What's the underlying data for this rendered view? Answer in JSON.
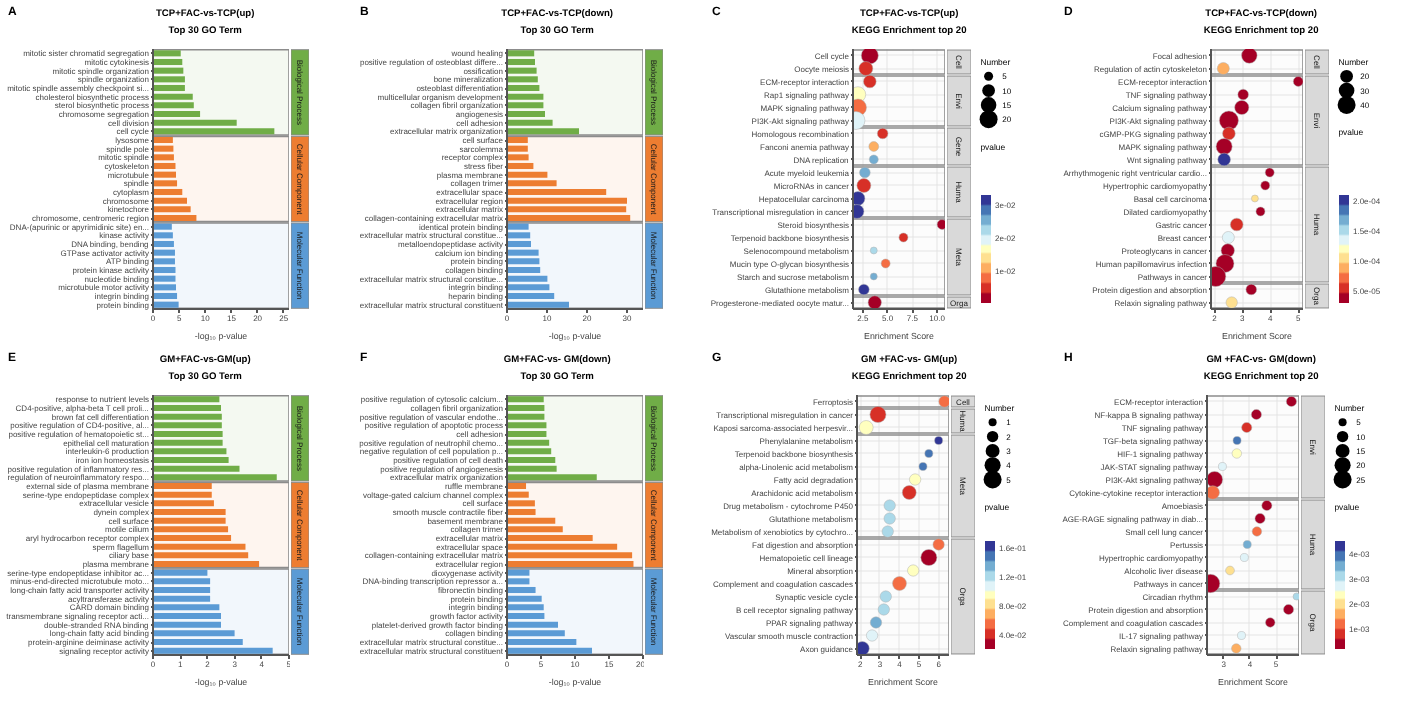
{
  "chart_data": [
    {
      "type": "bar",
      "orientation": "horizontal",
      "title": "TCP+FAC-vs-TCP(up)",
      "subtitle": "Top 30 GO Term",
      "xlabel": "-log₁₀ p-value",
      "annotations": [
        "A"
      ],
      "bands": [
        {
          "axis": "y",
          "from": "mitotic sister chromatid segregation",
          "to": "cell cycle",
          "label": "Biological Process",
          "color": "#70ad47"
        },
        {
          "axis": "y",
          "from": "lysosome",
          "to": "chromosome, centromeric region",
          "label": "Cellular Component",
          "color": "#ed7d31"
        },
        {
          "axis": "y",
          "from": "DNA-(apurinic or apyrimidinic site) en...",
          "to": "protein binding",
          "label": "Molecular Function",
          "color": "#5b9bd5"
        }
      ],
      "categories": [
        "mitotic sister chromatid segregation",
        "mitotic cytokinesis",
        "mitotic spindle organization",
        "spindle organization",
        "mitotic spindle assembly checkpoint si...",
        "cholesterol biosynthetic process",
        "sterol biosynthetic process",
        "chromosome segregation",
        "cell division",
        "cell cycle",
        "lysosome",
        "spindle pole",
        "mitotic spindle",
        "cytoskeleton",
        "microtubule",
        "spindle",
        "cytoplasm",
        "chromosome",
        "kinetochore",
        "chromosome, centromeric region",
        "DNA-(apurinic or apyrimidinic site) en...",
        "kinase activity",
        "DNA binding, bending",
        "GTPase activator activity",
        "ATP binding",
        "protein kinase activity",
        "nucleotide binding",
        "microtubule motor activity",
        "integrin binding",
        "protein binding"
      ],
      "values": [
        5.3,
        5.6,
        5.8,
        6.1,
        6.1,
        7.6,
        7.8,
        9.0,
        16.0,
        23.2,
        3.8,
        3.9,
        4.0,
        4.3,
        4.4,
        4.6,
        5.6,
        6.5,
        7.2,
        8.3,
        3.6,
        3.8,
        4.0,
        4.2,
        4.2,
        4.3,
        4.3,
        4.4,
        4.6,
        4.9
      ],
      "colors": [
        "#70ad47",
        "#70ad47",
        "#70ad47",
        "#70ad47",
        "#70ad47",
        "#70ad47",
        "#70ad47",
        "#70ad47",
        "#70ad47",
        "#70ad47",
        "#ed7d31",
        "#ed7d31",
        "#ed7d31",
        "#ed7d31",
        "#ed7d31",
        "#ed7d31",
        "#ed7d31",
        "#ed7d31",
        "#ed7d31",
        "#ed7d31",
        "#5b9bd5",
        "#5b9bd5",
        "#5b9bd5",
        "#5b9bd5",
        "#5b9bd5",
        "#5b9bd5",
        "#5b9bd5",
        "#5b9bd5",
        "#5b9bd5",
        "#5b9bd5"
      ],
      "xlim": [
        0,
        26
      ],
      "xticks": [
        0,
        5,
        10,
        15,
        20,
        25
      ]
    },
    {
      "type": "bar",
      "orientation": "horizontal",
      "title": "TCP+FAC-vs-TCP(down)",
      "subtitle": "Top 30 GO Term",
      "xlabel": "-log₁₀ p-value",
      "annotations": [
        "B"
      ],
      "bands": [
        {
          "axis": "y",
          "from": "wound healing",
          "to": "extracellular matrix organization",
          "label": "Biological Process",
          "color": "#70ad47"
        },
        {
          "axis": "y",
          "from": "cell surface",
          "to": "collagen-containing extracellular matrix",
          "label": "Cellular Component",
          "color": "#ed7d31"
        },
        {
          "axis": "y",
          "from": "identical protein binding",
          "to": "extracellular matrix structural constituent",
          "label": "Molecular Function",
          "color": "#5b9bd5"
        }
      ],
      "categories": [
        "wound healing",
        "positive regulation of osteoblast differe...",
        "ossification",
        "bone mineralization",
        "osteoblast differentiation",
        "multicellular organism development",
        "collagen fibril organization",
        "angiogenesis",
        "cell adhesion",
        "extracellular matrix organization",
        "cell surface",
        "sarcolemma",
        "receptor complex",
        "stress fiber",
        "plasma membrane",
        "collagen trimer",
        "extracellular space",
        "extracellular region",
        "extracellular matrix",
        "collagen-containing extracellular matrix",
        "identical protein binding",
        "extracellular matrix structural constitue...",
        "metalloendopeptidase activity",
        "calcium ion binding",
        "protein binding",
        "collagen binding",
        "extracellular matrix structural constitue...",
        "integrin binding",
        "heparin binding",
        "extracellular matrix structural constituent"
      ],
      "values": [
        6.8,
        7.0,
        7.4,
        7.7,
        8.1,
        9.1,
        9.1,
        9.5,
        11.4,
        18.0,
        5.2,
        5.2,
        5.4,
        6.6,
        10.1,
        12.4,
        24.8,
        30.0,
        29.8,
        30.8,
        5.4,
        5.8,
        6.0,
        7.9,
        8.1,
        8.3,
        10.1,
        10.6,
        11.8,
        15.5
      ],
      "colors": [
        "#70ad47",
        "#70ad47",
        "#70ad47",
        "#70ad47",
        "#70ad47",
        "#70ad47",
        "#70ad47",
        "#70ad47",
        "#70ad47",
        "#70ad47",
        "#ed7d31",
        "#ed7d31",
        "#ed7d31",
        "#ed7d31",
        "#ed7d31",
        "#ed7d31",
        "#ed7d31",
        "#ed7d31",
        "#ed7d31",
        "#ed7d31",
        "#5b9bd5",
        "#5b9bd5",
        "#5b9bd5",
        "#5b9bd5",
        "#5b9bd5",
        "#5b9bd5",
        "#5b9bd5",
        "#5b9bd5",
        "#5b9bd5",
        "#5b9bd5"
      ],
      "xlim": [
        0,
        34
      ],
      "xticks": [
        0,
        10,
        20,
        30
      ]
    },
    {
      "type": "bubble",
      "orientation": "horizontal",
      "title": "TCP+FAC-vs-TCP(up)",
      "subtitle": "KEGG Enrichment top 20",
      "xlabel": "Enrichment Score",
      "grid": true,
      "annotations": [
        "C"
      ],
      "bands": [
        {
          "axis": "y",
          "from": "Cell cycle",
          "to": "Oocyte meiosis",
          "label": "Cell",
          "color": "#d9d9d9"
        },
        {
          "axis": "y",
          "from": "ECM-receptor interaction",
          "to": "PI3K-Akt signaling pathway",
          "label": "Envi",
          "color": "#d9d9d9"
        },
        {
          "axis": "y",
          "from": "Homologous recombination",
          "to": "DNA replication",
          "label": "Gene",
          "color": "#d9d9d9"
        },
        {
          "axis": "y",
          "from": "Acute myeloid leukemia",
          "to": "Transcriptional misregulation in cancer",
          "label": "Huma",
          "color": "#d9d9d9"
        },
        {
          "axis": "y",
          "from": "Steroid biosynthesis",
          "to": "Glutathione metabolism",
          "label": "Meta",
          "color": "#d9d9d9"
        },
        {
          "axis": "y",
          "from": "Progesterone-mediated oocyte matur...",
          "to": "Progesterone-mediated oocyte matur...",
          "label": "Orga",
          "color": "#d9d9d9"
        }
      ],
      "categories": [
        "Cell cycle",
        "Oocyte meiosis",
        "ECM-receptor interaction",
        "Rap1 signaling pathway",
        "MAPK signaling pathway",
        "PI3K-Akt signaling pathway",
        "Homologous recombination",
        "Fanconi anemia pathway",
        "DNA replication",
        "Acute myeloid leukemia",
        "MicroRNAs in cancer",
        "Hepatocellular carcinoma",
        "Transcriptional misregulation in cancer",
        "Steroid biosynthesis",
        "Terpenoid backbone biosynthesis",
        "Selenocompound metabolism",
        "Mucin type O-glycan biosynthesis",
        "Starch and sucrose metabolism",
        "Glutathione metabolism",
        "Progesterone-mediated oocyte matur..."
      ],
      "values": [
        3.2,
        2.8,
        3.2,
        2.0,
        2.0,
        1.8,
        4.5,
        3.6,
        3.6,
        2.7,
        2.6,
        2.0,
        1.9,
        10.5,
        6.6,
        3.6,
        4.8,
        3.6,
        2.6,
        3.7
      ],
      "sizes": [
        18,
        12,
        10,
        15,
        18,
        20,
        7,
        6,
        5,
        7,
        12,
        12,
        12,
        6,
        5,
        3,
        5,
        3,
        7,
        11
      ],
      "cvalues": [
        0.001,
        0.004,
        0.004,
        0.018,
        0.008,
        0.019,
        0.005,
        0.012,
        0.026,
        0.026,
        0.006,
        0.031,
        0.031,
        0.001,
        0.004,
        0.022,
        0.009,
        0.026,
        0.032,
        0.003
      ],
      "size_legend": [
        5,
        10,
        15,
        20
      ],
      "legend_title": "Number",
      "clabel": "pvalue",
      "clim": [
        0.0005,
        0.033
      ],
      "cticks": [
        {
          "value": 0.01,
          "label": "1e-02"
        },
        {
          "value": 0.02,
          "label": "2e-02"
        },
        {
          "value": 0.03,
          "label": "3e-02"
        }
      ],
      "xlim": [
        1.5,
        10.8
      ],
      "xticks": [
        2.5,
        {
          "value": 5,
          "label": "5.0"
        },
        7.5,
        {
          "value": 10,
          "label": "10.0"
        }
      ]
    },
    {
      "type": "bubble",
      "orientation": "horizontal",
      "title": "TCP+FAC-vs-TCP(down)",
      "subtitle": "KEGG Enrichment top 20",
      "xlabel": "Enrichment Score",
      "grid": true,
      "annotations": [
        "D"
      ],
      "bands": [
        {
          "axis": "y",
          "from": "Focal adhesion",
          "to": "Regulation of actin cytoskeleton",
          "label": "Cell",
          "color": "#d9d9d9"
        },
        {
          "axis": "y",
          "from": "ECM-receptor interaction",
          "to": "Wnt signaling pathway",
          "label": "Envi",
          "color": "#d9d9d9"
        },
        {
          "axis": "y",
          "from": "Arrhythmogenic right ventricular cardio...",
          "to": "Pathways in cancer",
          "label": "Huma",
          "color": "#d9d9d9"
        },
        {
          "axis": "y",
          "from": "Protein digestion and absorption",
          "to": "Relaxin signaling pathway",
          "label": "Orga",
          "color": "#d9d9d9"
        }
      ],
      "categories": [
        "Focal adhesion",
        "Regulation of actin cytoskeleton",
        "ECM-receptor interaction",
        "TNF signaling pathway",
        "Calcium signaling pathway",
        "PI3K-Akt signaling pathway",
        "cGMP-PKG signaling pathway",
        "MAPK signaling pathway",
        "Wnt signaling pathway",
        "Arrhythmogenic right ventricular cardio...",
        "Hypertrophic cardiomyopathy",
        "Basal cell carcinoma",
        "Dilated cardiomyopathy",
        "Gastric cancer",
        "Breast cancer",
        "Proteoglycans in cancer",
        "Human papillomavirus infection",
        "Pathways in cancer",
        "Protein digestion and absorption",
        "Relaxin signaling pathway"
      ],
      "values": [
        3.25,
        2.32,
        5.0,
        3.03,
        2.98,
        2.52,
        2.52,
        2.35,
        2.35,
        3.98,
        3.82,
        3.45,
        3.65,
        2.8,
        2.5,
        2.48,
        2.38,
        2.05,
        3.32,
        2.62
      ],
      "sizes": [
        30,
        18,
        12,
        14,
        25,
        45,
        20,
        32,
        20,
        10,
        10,
        6,
        10,
        20,
        18,
        22,
        40,
        50,
        14,
        16
      ],
      "cvalues": [
        4e-05,
        8e-05,
        4e-05,
        4e-05,
        4e-05,
        4e-05,
        6e-05,
        4e-05,
        0.0002,
        4e-05,
        4e-05,
        0.0001,
        4e-05,
        6e-05,
        0.00013,
        4e-05,
        4e-05,
        4e-05,
        4e-05,
        0.0001
      ],
      "size_legend": [
        20,
        30,
        40
      ],
      "legend_title": "Number",
      "clabel": "pvalue",
      "clim": [
        3e-05,
        0.00021
      ],
      "cticks": [
        {
          "value": 5e-05,
          "label": "5.0e-05"
        },
        {
          "value": 0.0001,
          "label": "1.0e-04"
        },
        {
          "value": 0.00015,
          "label": "1.5e-04"
        },
        {
          "value": 0.0002,
          "label": "2.0e-04"
        }
      ],
      "xlim": [
        1.88,
        5.17
      ],
      "xticks": [
        2,
        3,
        4,
        5
      ]
    },
    {
      "type": "bar",
      "orientation": "horizontal",
      "title": "GM+FAC-vs-GM(up)",
      "subtitle": "Top 30 GO Term",
      "xlabel": "-log₁₀ p-value",
      "annotations": [
        "E"
      ],
      "bands": [
        {
          "axis": "y",
          "from": "response to nutrient levels",
          "to": "regulation of neuroinflammatory respo...",
          "label": "Biological Process",
          "color": "#70ad47"
        },
        {
          "axis": "y",
          "from": "external side of plasma membrane",
          "to": "plasma membrane",
          "label": "Cellular Component",
          "color": "#ed7d31"
        },
        {
          "axis": "y",
          "from": "serine-type endopeptidase inhibitor ac...",
          "to": "signaling receptor activity",
          "label": "Molecular Function",
          "color": "#5b9bd5"
        }
      ],
      "categories": [
        "response to nutrient levels",
        "CD4-positive, alpha-beta T cell proli...",
        "brown fat cell differentiation",
        "positive regulation of CD4-positive, al...",
        "positive regulation of hematopoietic st...",
        "epithelial cell maturation",
        "interleukin-6 production",
        "iron ion homeostasis",
        "positive regulation of inflammatory res...",
        "regulation of neuroinflammatory respo...",
        "external side of plasma membrane",
        "serine-type endopeptidase complex",
        "extracellular vesicle",
        "dynein complex",
        "cell surface",
        "motile cilium",
        "aryl hydrocarbon receptor complex",
        "sperm flagellum",
        "ciliary base",
        "plasma membrane",
        "serine-type endopeptidase inhibitor ac...",
        "minus-end-directed microtubule moto...",
        "long-chain fatty acid transporter activity",
        "acyltransferase activity",
        "CARD domain binding",
        "transmembrane signaling receptor acti...",
        "double-stranded RNA binding",
        "long-chain fatty acid binding",
        "protein-arginine deiminase activity",
        "signaling receptor activity"
      ],
      "values": [
        2.44,
        2.5,
        2.53,
        2.53,
        2.56,
        2.56,
        2.7,
        2.78,
        3.18,
        4.55,
        2.16,
        2.16,
        2.24,
        2.67,
        2.67,
        2.76,
        2.87,
        3.4,
        3.5,
        3.9,
        2.0,
        2.1,
        2.1,
        2.1,
        2.44,
        2.5,
        2.5,
        3.0,
        3.3,
        4.4
      ],
      "colors": [
        "#70ad47",
        "#70ad47",
        "#70ad47",
        "#70ad47",
        "#70ad47",
        "#70ad47",
        "#70ad47",
        "#70ad47",
        "#70ad47",
        "#70ad47",
        "#ed7d31",
        "#ed7d31",
        "#ed7d31",
        "#ed7d31",
        "#ed7d31",
        "#ed7d31",
        "#ed7d31",
        "#ed7d31",
        "#ed7d31",
        "#ed7d31",
        "#5b9bd5",
        "#5b9bd5",
        "#5b9bd5",
        "#5b9bd5",
        "#5b9bd5",
        "#5b9bd5",
        "#5b9bd5",
        "#5b9bd5",
        "#5b9bd5",
        "#5b9bd5"
      ],
      "xlim": [
        0,
        5
      ],
      "xticks": [
        0,
        1,
        2,
        3,
        4,
        5
      ]
    },
    {
      "type": "bar",
      "orientation": "horizontal",
      "title": "GM+FAC-vs- GM(down)",
      "subtitle": "Top 30 GO Term",
      "xlabel": "-log₁₀ p-value",
      "annotations": [
        "F"
      ],
      "bands": [
        {
          "axis": "y",
          "from": "positive regulation of cytosolic calcium...",
          "to": "extracellular matrix organization",
          "label": "Biological Process",
          "color": "#70ad47"
        },
        {
          "axis": "y",
          "from": "ruffle membrane",
          "to": "extracellular region",
          "label": "Cellular Component",
          "color": "#ed7d31"
        },
        {
          "axis": "y",
          "from": "dioxygenase activity",
          "to": "extracellular matrix structural constituent",
          "label": "Molecular Function",
          "color": "#5b9bd5"
        }
      ],
      "categories": [
        "positive regulation of cytosolic calcium...",
        "collagen fibril organization",
        "positive regulation of vascular endothe...",
        "positive regulation of apoptotic process",
        "cell adhesion",
        "positive regulation of neutrophil chemo...",
        "negative regulation of cell population p...",
        "positive regulation of cell death",
        "positive regulation of angiogenesis",
        "extracellular matrix organization",
        "ruffle membrane",
        "voltage-gated calcium channel complex",
        "cell surface",
        "smooth muscle contractile fiber",
        "basement membrane",
        "collagen trimer",
        "extracellular matrix",
        "extracellular space",
        "collagen-containing extracellular matrix",
        "extracellular region",
        "dioxygenase activity",
        "DNA-binding transcription repressor a...",
        "fibronectin binding",
        "protein binding",
        "integrin binding",
        "growth factor activity",
        "platelet-derived growth factor binding",
        "collagen binding",
        "extracellular matrix structural constitue...",
        "extracellular matrix structural constituent"
      ],
      "values": [
        5.4,
        5.5,
        5.5,
        5.8,
        5.8,
        6.2,
        6.5,
        7.1,
        7.3,
        13.2,
        2.8,
        3.2,
        4.1,
        4.2,
        7.1,
        8.2,
        12.6,
        16.2,
        18.4,
        18.6,
        3.3,
        3.3,
        4.2,
        5.1,
        5.4,
        5.5,
        7.5,
        8.5,
        10.2,
        12.5
      ],
      "colors": [
        "#70ad47",
        "#70ad47",
        "#70ad47",
        "#70ad47",
        "#70ad47",
        "#70ad47",
        "#70ad47",
        "#70ad47",
        "#70ad47",
        "#70ad47",
        "#ed7d31",
        "#ed7d31",
        "#ed7d31",
        "#ed7d31",
        "#ed7d31",
        "#ed7d31",
        "#ed7d31",
        "#ed7d31",
        "#ed7d31",
        "#ed7d31",
        "#5b9bd5",
        "#5b9bd5",
        "#5b9bd5",
        "#5b9bd5",
        "#5b9bd5",
        "#5b9bd5",
        "#5b9bd5",
        "#5b9bd5",
        "#5b9bd5",
        "#5b9bd5"
      ],
      "xlim": [
        0,
        20
      ],
      "xticks": [
        0,
        5,
        10,
        15,
        20
      ]
    },
    {
      "type": "bubble",
      "orientation": "horizontal",
      "title": "GM +FAC-vs- GM(up)",
      "subtitle": "KEGG Enrichment top 20",
      "xlabel": "Enrichment Score",
      "grid": true,
      "annotations": [
        "G"
      ],
      "bands": [
        {
          "axis": "y",
          "from": "Ferroptosis",
          "to": "Ferroptosis",
          "label": "Cell",
          "color": "#d9d9d9"
        },
        {
          "axis": "y",
          "from": "Transcriptional misregulation in cancer",
          "to": "Kaposi sarcoma-associated herpesvir...",
          "label": "Huma",
          "color": "#d9d9d9"
        },
        {
          "axis": "y",
          "from": "Phenylalanine metabolism",
          "to": "Metabolism of xenobiotics by cytochro...",
          "label": "Meta",
          "color": "#d9d9d9"
        },
        {
          "axis": "y",
          "from": "Fat digestion and absorption",
          "to": "Axon guidance",
          "label": "Orga",
          "color": "#d9d9d9"
        }
      ],
      "categories": [
        "Ferroptosis",
        "Transcriptional misregulation in cancer",
        "Kaposi sarcoma-associated herpesvir...",
        "Phenylalanine metabolism",
        "Terpenoid backbone biosynthesis",
        "alpha-Linolenic acid metabolism",
        "Fatty acid degradation",
        "Arachidonic acid metabolism",
        "Drug metabolism - cytochrome P450",
        "Glutathione metabolism",
        "Metabolism of xenobiotics by cytochro...",
        "Fat digestion and absorption",
        "Hematopoietic cell lineage",
        "Mineral absorption",
        "Complement and coagulation cascades",
        "Synaptic vesicle cycle",
        "B cell receptor signaling pathway",
        "PPAR signaling pathway",
        "Vascular smooth muscle contraction",
        "Axon guidance"
      ],
      "values": [
        6.3,
        2.9,
        2.3,
        6.0,
        5.5,
        5.2,
        4.8,
        4.5,
        3.5,
        3.5,
        3.4,
        6.0,
        5.5,
        4.7,
        4.0,
        3.3,
        3.2,
        2.8,
        2.6,
        2.1
      ],
      "sizes": [
        2,
        4,
        3,
        1,
        1,
        1,
        2,
        3,
        2,
        2,
        2,
        2,
        4,
        2,
        3,
        2,
        2,
        2,
        2,
        3
      ],
      "cvalues": [
        0.05,
        0.04,
        0.09,
        0.16,
        0.15,
        0.15,
        0.09,
        0.04,
        0.12,
        0.12,
        0.12,
        0.05,
        0.03,
        0.09,
        0.05,
        0.12,
        0.12,
        0.14,
        0.11,
        0.17
      ],
      "size_legend": [
        1,
        2,
        3,
        4,
        5
      ],
      "legend_title": "Number",
      "clabel": "pvalue",
      "clim": [
        0.02,
        0.17
      ],
      "cticks": [
        {
          "value": 0.04,
          "label": "4.0e-02"
        },
        {
          "value": 0.08,
          "label": "8.0e-02"
        },
        {
          "value": 0.12,
          "label": "1.2e-01"
        },
        {
          "value": 0.16,
          "label": "1.6e-01"
        }
      ],
      "xlim": [
        1.83,
        6.53
      ],
      "xticks": [
        2,
        3,
        4,
        5,
        6
      ]
    },
    {
      "type": "bubble",
      "orientation": "horizontal",
      "title": "GM +FAC-vs- GM(down)",
      "subtitle": "KEGG Enrichment top 20",
      "xlabel": "Enrichment Score",
      "grid": true,
      "annotations": [
        "H"
      ],
      "bands": [
        {
          "axis": "y",
          "from": "ECM-receptor interaction",
          "to": "Cytokine-cytokine receptor interaction",
          "label": "Envi",
          "color": "#d9d9d9"
        },
        {
          "axis": "y",
          "from": "Amoebiasis",
          "to": "Pathways in cancer",
          "label": "Huma",
          "color": "#d9d9d9"
        },
        {
          "axis": "y",
          "from": "Circadian rhythm",
          "to": "Relaxin signaling pathway",
          "label": "Orga",
          "color": "#d9d9d9"
        }
      ],
      "categories": [
        "ECM-receptor interaction",
        "NF-kappa B signaling pathway",
        "TNF signaling pathway",
        "TGF-beta signaling pathway",
        "HIF-1 signaling pathway",
        "JAK-STAT signaling pathway",
        "PI3K-Akt signaling pathway",
        "Cytokine-cytokine receptor interaction",
        "Amoebiasis",
        "AGE-RAGE signaling pathway in diab...",
        "Small cell lung cancer",
        "Pertussis",
        "Hypertrophic cardiomyopathy",
        "Alcoholic liver disease",
        "Pathways in cancer",
        "Circadian rhythm",
        "Protein digestion and absorption",
        "Complement and coagulation cascades",
        "IL-17 signaling pathway",
        "Relaxin signaling pathway"
      ],
      "values": [
        5.59,
        4.25,
        3.88,
        3.51,
        3.5,
        2.95,
        2.65,
        2.58,
        4.65,
        4.39,
        4.27,
        3.9,
        3.79,
        3.24,
        2.5,
        5.79,
        5.48,
        4.78,
        3.68,
        3.48
      ],
      "sizes": [
        8,
        8,
        8,
        5,
        7,
        5,
        20,
        14,
        8,
        8,
        7,
        5,
        5,
        6,
        26,
        4,
        8,
        7,
        5,
        7
      ],
      "cvalues": [
        0.0003,
        0.0005,
        0.0009,
        0.0038,
        0.0022,
        0.0027,
        0.0004,
        0.0012,
        0.0005,
        0.0005,
        0.001,
        0.0037,
        0.0027,
        0.002,
        0.0003,
        0.003,
        0.0003,
        0.0005,
        0.0028,
        0.0015
      ],
      "size_legend": [
        5,
        10,
        15,
        20,
        25
      ],
      "legend_title": "Number",
      "clabel": "pvalue",
      "clim": [
        0.0002,
        0.0045
      ],
      "cticks": [
        {
          "value": 0.001,
          "label": "1e-03"
        },
        {
          "value": 0.002,
          "label": "2e-03"
        },
        {
          "value": 0.003,
          "label": "3e-03"
        },
        {
          "value": 0.004,
          "label": "4e-03"
        }
      ],
      "xlim": [
        2.36,
        5.88
      ],
      "xticks": [
        3,
        4,
        5
      ]
    }
  ]
}
